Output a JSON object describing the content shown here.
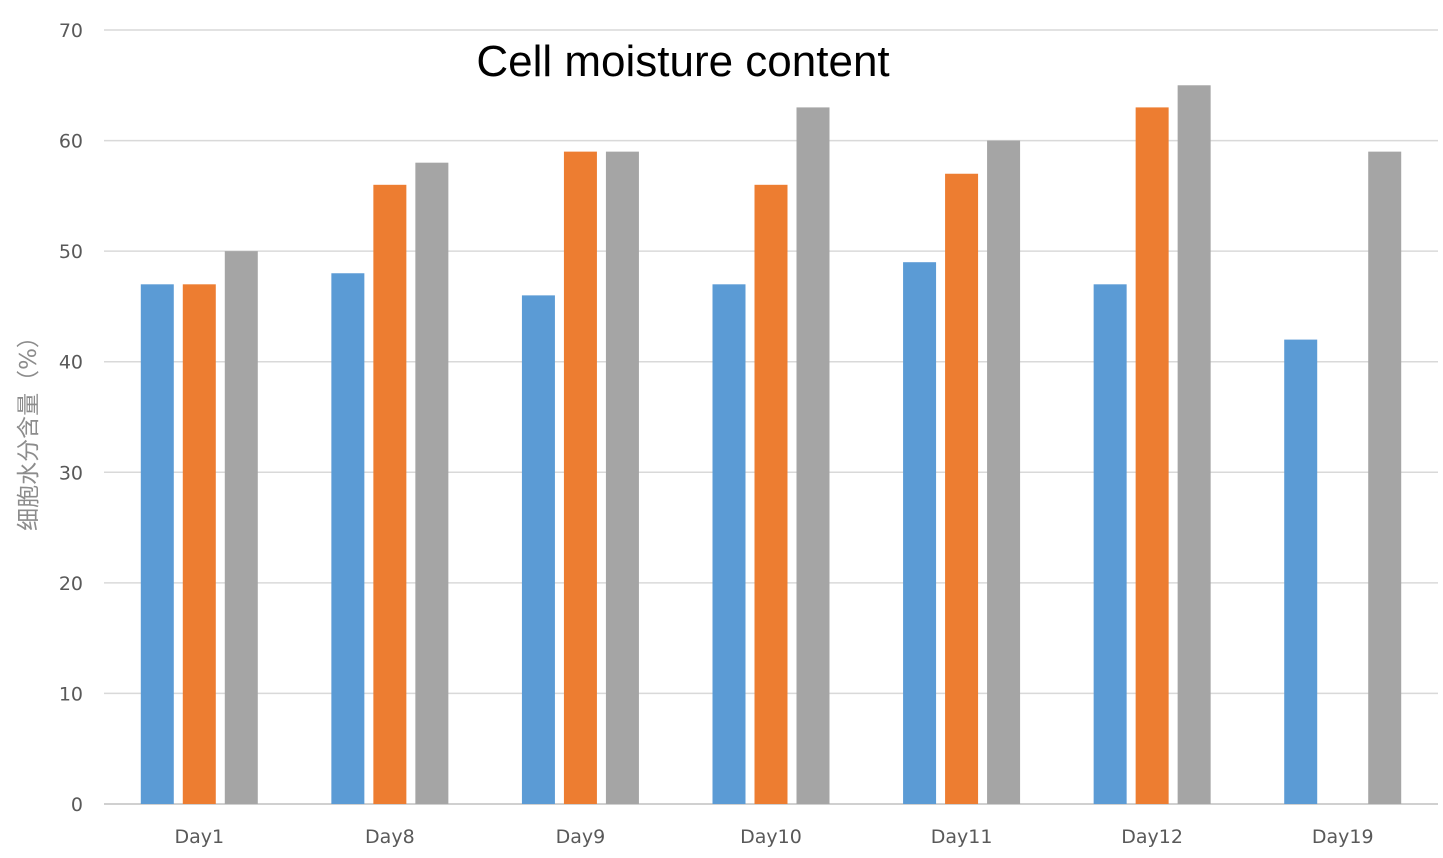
{
  "chart_data": {
    "type": "bar",
    "title": "Cell moisture content",
    "xlabel": "",
    "ylabel": "细胞水分含量（%）",
    "ylim": [
      0,
      70
    ],
    "yticks": [
      0,
      10,
      20,
      30,
      40,
      50,
      60,
      70
    ],
    "grid": true,
    "legend": "none",
    "categories": [
      "Day1",
      "Day8",
      "Day9",
      "Day10",
      "Day11",
      "Day12",
      "Day19"
    ],
    "series": [
      {
        "color": "#5b9bd5",
        "values": [
          47,
          48,
          46,
          47,
          49,
          47,
          42
        ]
      },
      {
        "color": "#ed7d31",
        "values": [
          47,
          56,
          59,
          56,
          57,
          63,
          null
        ]
      },
      {
        "color": "#a5a5a5",
        "values": [
          50,
          58,
          59,
          63,
          60,
          65,
          59
        ]
      }
    ]
  }
}
